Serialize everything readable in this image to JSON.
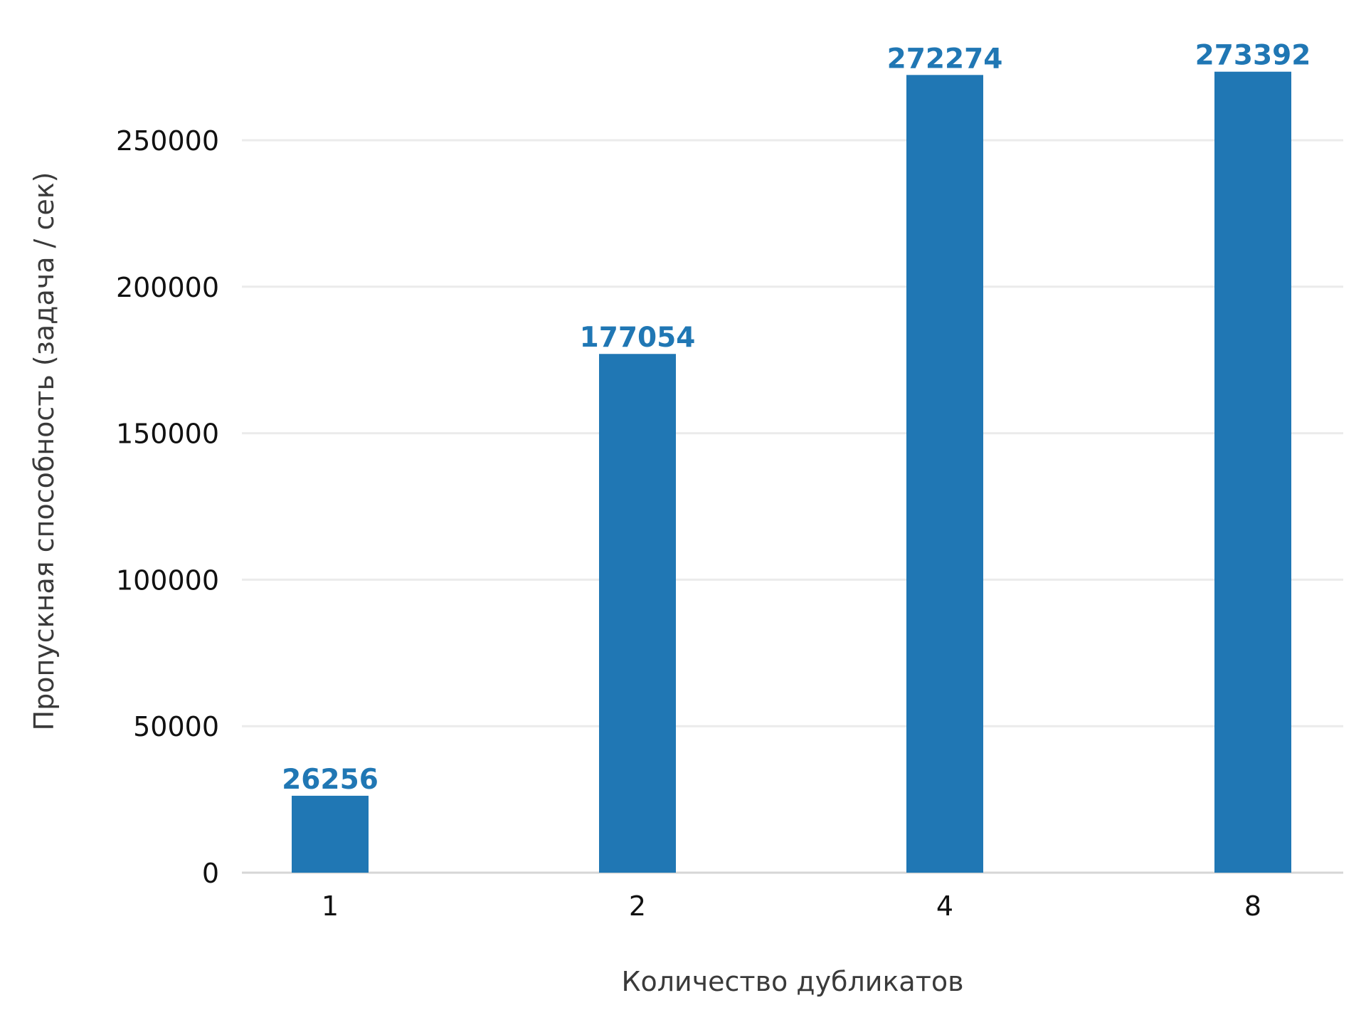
{
  "chart_data": {
    "type": "bar",
    "xlabel": "Количество дубликатов",
    "ylabel": "Пропускная способность (задача / сек)",
    "categories": [
      "1",
      "2",
      "4",
      "8"
    ],
    "values": [
      26256,
      177054,
      272274,
      273392
    ],
    "value_labels": [
      "26256",
      "177054",
      "272274",
      "273392"
    ],
    "yticks": [
      0,
      50000,
      100000,
      150000,
      200000,
      250000
    ],
    "ytick_labels": [
      "0",
      "50000",
      "100000",
      "150000",
      "200000",
      "250000"
    ],
    "ylim": [
      0,
      287000
    ],
    "grid": true,
    "colors": {
      "bar": "#2077b4",
      "label": "#2077b4"
    }
  }
}
